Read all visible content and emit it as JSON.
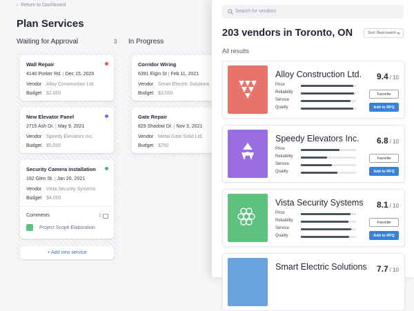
{
  "nav": {
    "back": "Return to Dashboard"
  },
  "title": "Plan Services",
  "columns": [
    {
      "name": "Waiting for Approval",
      "count": 3,
      "cards": [
        {
          "title": "Wall Repair",
          "color": "#e5534b",
          "address": "4140 Porker Rd.",
          "date": "Dec 15, 2020",
          "vendor_label": "Vendor",
          "vendor": "Alloy Construction Ltd.",
          "budget_label": "Budget",
          "budget": "$2,000"
        },
        {
          "title": "New Elevator Panel",
          "color": "#8b5cf6",
          "address": "2715 Ash Dr.",
          "date": "May 9, 2021",
          "vendor_label": "Vendor",
          "vendor": "Speedy Elevators Inc.",
          "budget_label": "Budget",
          "budget": "$5,000"
        },
        {
          "title": "Security Camera Installation",
          "color": "#3fbf6e",
          "address": "192 Glen St.",
          "date": "Jan 20, 2021",
          "vendor_label": "Vendor",
          "vendor": "Vista Security Systems",
          "budget_label": "Budget",
          "budget": "$4,000",
          "comments_label": "Comments",
          "comments_count": 1,
          "attachment": "Project Scope Elaboration"
        }
      ],
      "add_button": "+ Add new service"
    },
    {
      "name": "In Progress",
      "cards": [
        {
          "title": "Corridor Wiring",
          "address": "6391 Elgin St",
          "date": "Feb 11, 2021",
          "vendor_label": "Vendor",
          "vendor": "Smart Electric Solutions",
          "budget_label": "Budget",
          "budget": "$3,500"
        },
        {
          "title": "Gate Repair",
          "address": "829 Shadow Dr.",
          "date": "Nov 3, 2021",
          "vendor_label": "Vendor",
          "vendor": "Metal Gate Solid Ltd.",
          "budget_label": "Budget",
          "budget": "$750"
        }
      ]
    }
  ],
  "panel": {
    "search_placeholder": "Search for vendors",
    "heading": "203 vendors in Toronto, ON",
    "sort": "Sort: Best match",
    "section": "All results",
    "vendors": [
      {
        "name": "Alloy Construction Ltd.",
        "color": "#e8736b",
        "score": 9.4,
        "score_suffix": "/ 10",
        "ratings": [
          {
            "label": "Price",
            "value": 95
          },
          {
            "label": "Reliability",
            "value": 96
          },
          {
            "label": "Service",
            "value": 90
          },
          {
            "label": "Quality",
            "value": 95
          }
        ],
        "favorite": "Favorite",
        "add": "Add to RFQ"
      },
      {
        "name": "Speedy Elevators Inc.",
        "color": "#9a6de0",
        "score": 6.8,
        "score_suffix": "/ 10",
        "ratings": [
          {
            "label": "Price",
            "value": 70
          },
          {
            "label": "Reliability",
            "value": 48
          },
          {
            "label": "Service",
            "value": 56
          },
          {
            "label": "Quality",
            "value": 66
          }
        ],
        "favorite": "Favorite",
        "add": "Add to RFQ"
      },
      {
        "name": "Vista Security Systems",
        "color": "#5ec27e",
        "score": 8.1,
        "score_suffix": "/ 10",
        "ratings": [
          {
            "label": "Price",
            "value": 90
          },
          {
            "label": "Reliability",
            "value": 86
          },
          {
            "label": "Service",
            "value": 91
          },
          {
            "label": "Quality",
            "value": 88
          }
        ],
        "favorite": "Favorite",
        "add": "Add to RFQ"
      },
      {
        "name": "Smart Electric Solutions",
        "color": "#6aa2e0",
        "score": 7.7,
        "score_suffix": "/ 10"
      }
    ]
  }
}
